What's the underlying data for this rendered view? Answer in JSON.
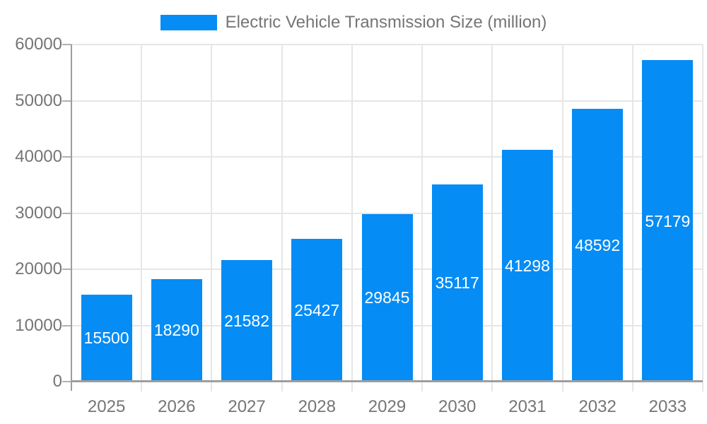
{
  "legend": {
    "label": "Electric Vehicle Transmission Size (million)"
  },
  "chart_data": {
    "type": "bar",
    "title": "Electric Vehicle Transmission Size (million)",
    "categories": [
      "2025",
      "2026",
      "2027",
      "2028",
      "2029",
      "2030",
      "2031",
      "2032",
      "2033"
    ],
    "values": [
      15500,
      18290,
      21582,
      25427,
      29845,
      35117,
      41298,
      48592,
      57179
    ],
    "bar_value_labels": [
      "15500",
      "18290",
      "21582",
      "25427",
      "29845",
      "35117",
      "41298",
      "48592",
      "57179"
    ],
    "xlabel": "",
    "ylabel": "",
    "ylim": [
      0,
      60000
    ],
    "yticks": [
      0,
      10000,
      20000,
      30000,
      40000,
      50000,
      60000
    ],
    "grid": true,
    "legend_position": "top",
    "colors": {
      "bar": "#058cf5",
      "bar_value_label": "#ffffff",
      "axis_text": "#757575",
      "axis_line": "#9e9e9e",
      "tick": "#b0b0b0",
      "gridline": "#e6e6e6"
    }
  }
}
